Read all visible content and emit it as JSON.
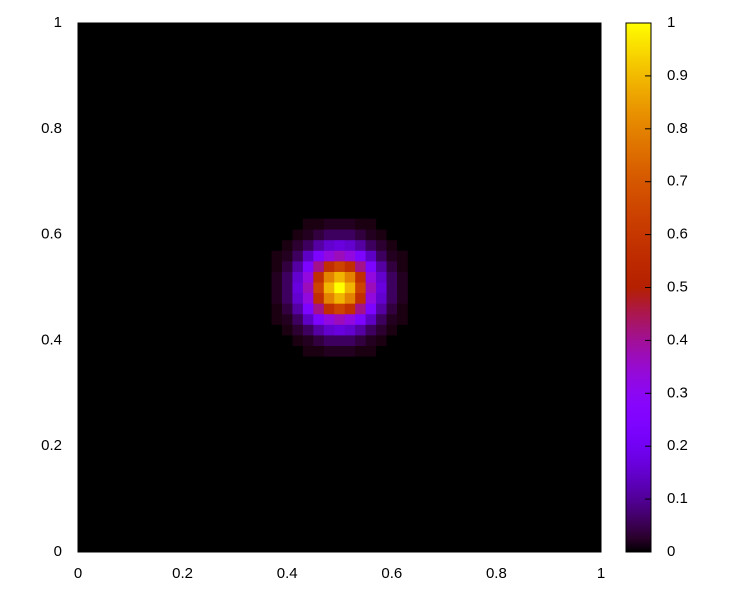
{
  "chart_data": {
    "type": "heatmap",
    "x": [
      0.38,
      0.4,
      0.42,
      0.44,
      0.46,
      0.48,
      0.5,
      0.52,
      0.54,
      0.56,
      0.58,
      0.6,
      0.62
    ],
    "y": [
      0.38,
      0.4,
      0.42,
      0.44,
      0.46,
      0.48,
      0.5,
      0.52,
      0.54,
      0.56,
      0.58,
      0.6,
      0.62
    ],
    "z": [
      [
        0,
        0,
        0,
        0.01,
        0.01,
        0.02,
        0.02,
        0.02,
        0.01,
        0.01,
        0,
        0,
        0
      ],
      [
        0,
        0,
        0.01,
        0.02,
        0.04,
        0.06,
        0.06,
        0.06,
        0.04,
        0.02,
        0.01,
        0,
        0
      ],
      [
        0,
        0.01,
        0.03,
        0.06,
        0.11,
        0.15,
        0.17,
        0.15,
        0.11,
        0.06,
        0.03,
        0.01,
        0
      ],
      [
        0.01,
        0.02,
        0.06,
        0.14,
        0.24,
        0.33,
        0.37,
        0.33,
        0.24,
        0.14,
        0.06,
        0.02,
        0.01
      ],
      [
        0.01,
        0.04,
        0.11,
        0.24,
        0.41,
        0.57,
        0.64,
        0.57,
        0.41,
        0.24,
        0.11,
        0.04,
        0.01
      ],
      [
        0.02,
        0.06,
        0.15,
        0.33,
        0.57,
        0.8,
        0.89,
        0.8,
        0.57,
        0.33,
        0.15,
        0.06,
        0.02
      ],
      [
        0.02,
        0.06,
        0.17,
        0.37,
        0.64,
        0.89,
        1,
        0.89,
        0.64,
        0.37,
        0.17,
        0.06,
        0.02
      ],
      [
        0.02,
        0.06,
        0.15,
        0.33,
        0.57,
        0.8,
        0.89,
        0.8,
        0.57,
        0.33,
        0.15,
        0.06,
        0.02
      ],
      [
        0.01,
        0.04,
        0.11,
        0.24,
        0.41,
        0.57,
        0.64,
        0.57,
        0.41,
        0.24,
        0.11,
        0.04,
        0.01
      ],
      [
        0.01,
        0.02,
        0.06,
        0.14,
        0.24,
        0.33,
        0.37,
        0.33,
        0.24,
        0.14,
        0.06,
        0.02,
        0.01
      ],
      [
        0,
        0.01,
        0.03,
        0.06,
        0.11,
        0.15,
        0.17,
        0.15,
        0.11,
        0.06,
        0.03,
        0.01,
        0
      ],
      [
        0,
        0,
        0.01,
        0.02,
        0.04,
        0.06,
        0.06,
        0.06,
        0.04,
        0.02,
        0.01,
        0,
        0
      ],
      [
        0,
        0,
        0,
        0.01,
        0.01,
        0.02,
        0.02,
        0.02,
        0.01,
        0.01,
        0,
        0,
        0
      ]
    ],
    "xlim": [
      0,
      1
    ],
    "ylim": [
      0,
      1
    ],
    "xticks": [
      0,
      0.2,
      0.4,
      0.6,
      0.8,
      1
    ],
    "yticks": [
      0,
      0.2,
      0.4,
      0.6,
      0.8,
      1
    ],
    "cblim": [
      0,
      1
    ],
    "cbticks": [
      0,
      0.1,
      0.2,
      0.3,
      0.4,
      0.5,
      0.6,
      0.7,
      0.8,
      0.9,
      1
    ]
  }
}
